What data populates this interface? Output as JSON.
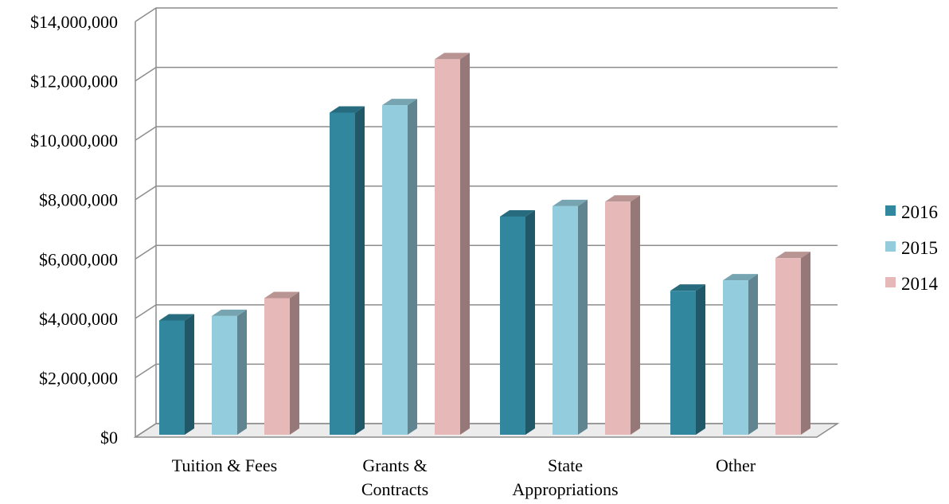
{
  "chart_data": {
    "type": "bar",
    "title": "",
    "xlabel": "",
    "ylabel": "",
    "categories": [
      [
        "Tuition & Fees"
      ],
      [
        "Grants &",
        "Contracts"
      ],
      [
        "State",
        "Appropriations"
      ],
      [
        "Other"
      ]
    ],
    "series": [
      {
        "name": "2016",
        "color": "#31879e",
        "values": [
          3850000,
          10850000,
          7350000,
          4850000
        ]
      },
      {
        "name": "2015",
        "color": "#93cddd",
        "values": [
          4000000,
          11100000,
          7700000,
          5200000
        ]
      },
      {
        "name": "2014",
        "color": "#e6b9b8",
        "values": [
          4600000,
          12650000,
          7850000,
          5950000
        ]
      }
    ],
    "ylim": [
      0,
      14000000
    ],
    "yticks": [
      0,
      2000000,
      4000000,
      6000000,
      8000000,
      10000000,
      12000000,
      14000000
    ],
    "ytick_labels": [
      "$0",
      "$2,000,000",
      "$4,000,000",
      "$6,000,000",
      "$8,000,000",
      "$10,000,000",
      "$12,000,000",
      "$14,000,000"
    ],
    "grid": true,
    "legend_position": "right",
    "style": "3d-clustered-column"
  }
}
